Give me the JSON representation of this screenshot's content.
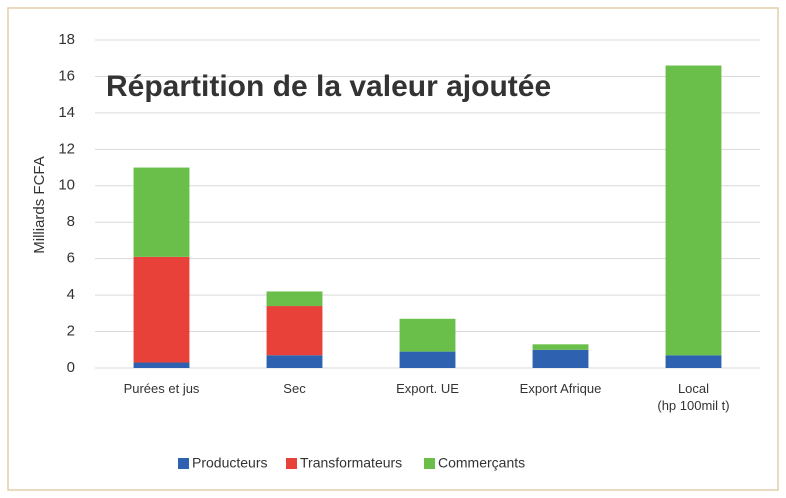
{
  "chart_data": {
    "type": "stacked_bar",
    "title": "Répartition de la valeur ajoutée",
    "y_label": "Milliards FCFA",
    "categories": [
      "Purées et jus",
      "Sec",
      "Export. UE",
      "Export Afrique",
      "Local\n(hp 100mil t)"
    ],
    "series": [
      {
        "name": "Producteurs",
        "color": "#2e62b0",
        "values": [
          0.3,
          0.7,
          0.9,
          1.0,
          0.7
        ]
      },
      {
        "name": "Transformateurs",
        "color": "#e8413a",
        "values": [
          5.8,
          2.7,
          0,
          0,
          0
        ]
      },
      {
        "name": "Commerçants",
        "color": "#6abf4b",
        "values": [
          4.9,
          0.8,
          1.8,
          0.3,
          15.9
        ]
      }
    ],
    "ylim": [
      0,
      18
    ],
    "yticks": [
      0,
      2,
      4,
      6,
      8,
      10,
      12,
      14,
      16,
      18
    ],
    "grid": true,
    "legend": "bottom"
  }
}
